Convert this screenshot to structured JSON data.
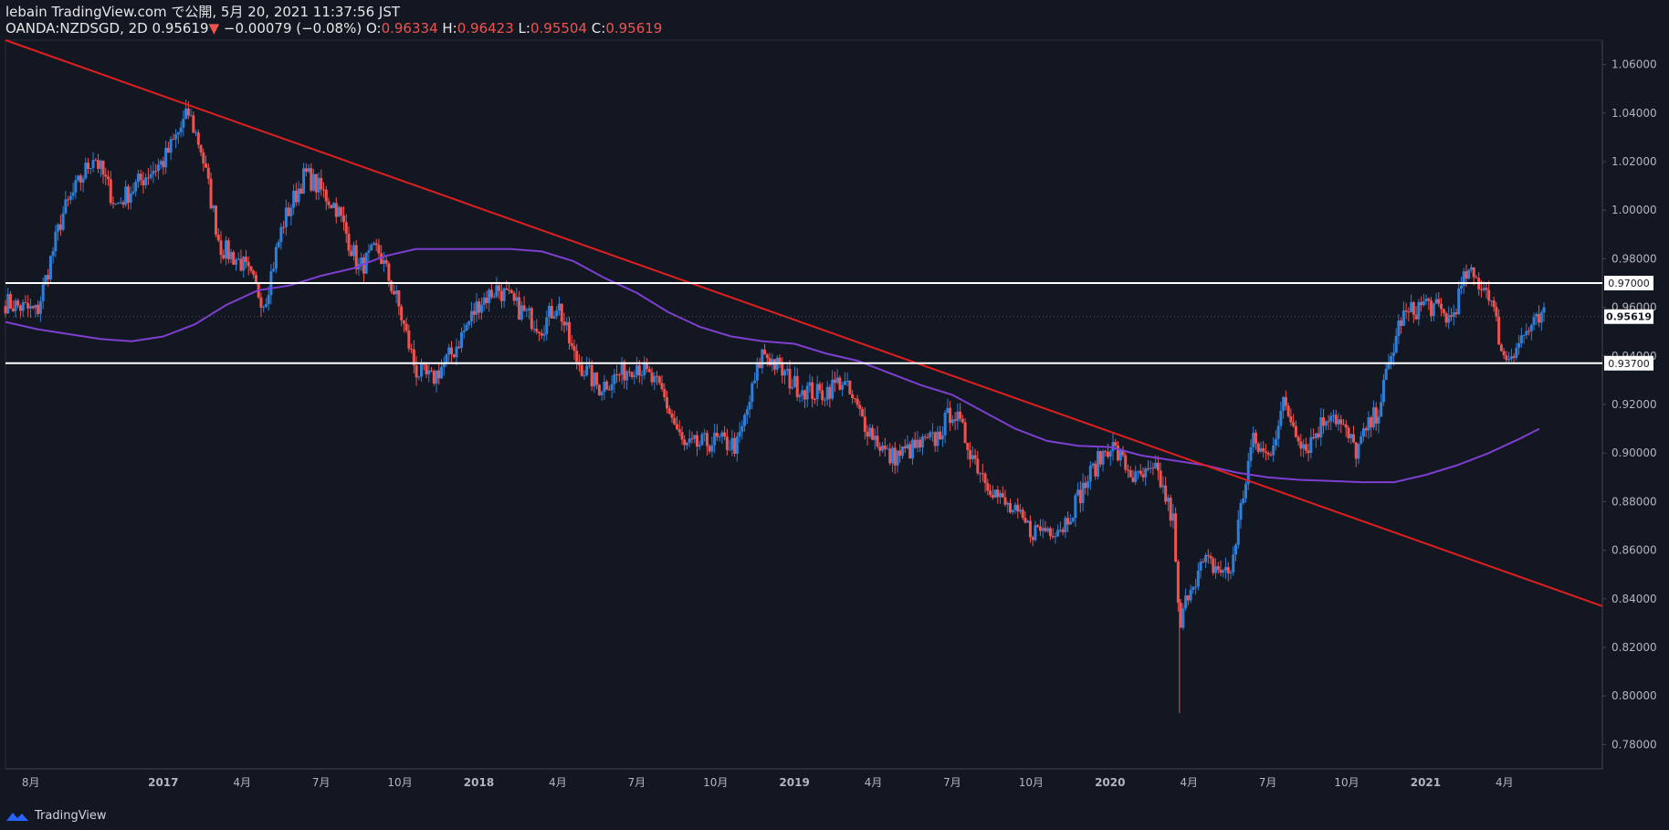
{
  "header": {
    "line1": "lebain TradingView.com で公開, 5月 20, 2021 11:37:56 JST",
    "symbol": "OANDA:NZDSGD, 2D",
    "last": "0.95619",
    "change_arrow": "▼",
    "change": "−0.00079 (−0.08%)",
    "o_label": "O:",
    "o_val": "0.96334",
    "h_label": "H:",
    "h_val": "0.96423",
    "l_label": "L:",
    "l_val": "0.95504",
    "c_label": "C:",
    "c_val": "0.95619"
  },
  "footer": {
    "brand": "TradingView",
    "logo_icon": "tradingview-logo-icon"
  },
  "colors": {
    "background": "#131722",
    "up": "#2f7fd8",
    "down": "#ef5350",
    "trendline": "#e01f1f",
    "ma": "#7e3fd0",
    "level": "#ffffff",
    "axis_text": "#b2b5be"
  },
  "chart_data": {
    "type": "candlestick",
    "ylim": [
      0.77,
      1.07
    ],
    "y_ticks": [
      "1.06000",
      "1.04000",
      "1.02000",
      "1.00000",
      "0.98000",
      "0.96000",
      "0.94000",
      "0.92000",
      "0.90000",
      "0.88000",
      "0.86000",
      "0.84000",
      "0.82000",
      "0.80000",
      "0.78000"
    ],
    "x_labels": [
      "8月",
      "2017",
      "4月",
      "7月",
      "10月",
      "2018",
      "4月",
      "7月",
      "10月",
      "2019",
      "4月",
      "7月",
      "10月",
      "2020",
      "4月",
      "7月",
      "10月",
      "2021",
      "4月"
    ],
    "x_label_times": [
      2016.58,
      2017.0,
      2017.25,
      2017.5,
      2017.75,
      2018.0,
      2018.25,
      2018.5,
      2018.75,
      2019.0,
      2019.25,
      2019.5,
      2019.75,
      2020.0,
      2020.25,
      2020.5,
      2020.75,
      2021.0,
      2021.25
    ],
    "price_series": {
      "t": [
        2016.5,
        2016.6,
        2016.68,
        2016.78,
        2016.85,
        2016.95,
        2017.0,
        2017.08,
        2017.12,
        2017.18,
        2017.25,
        2017.32,
        2017.38,
        2017.45,
        2017.55,
        2017.62,
        2017.68,
        2017.74,
        2017.8,
        2017.85,
        2017.92,
        2018.0,
        2018.06,
        2018.12,
        2018.2,
        2018.25,
        2018.3,
        2018.38,
        2018.5,
        2018.58,
        2018.65,
        2018.75,
        2018.82,
        2018.9,
        2019.0,
        2019.08,
        2019.15,
        2019.22,
        2019.3,
        2019.38,
        2019.45,
        2019.5,
        2019.58,
        2019.65,
        2019.75,
        2019.85,
        2019.95,
        2020.0,
        2020.08,
        2020.15,
        2020.2,
        2020.22,
        2020.25,
        2020.3,
        2020.38,
        2020.45,
        2020.5,
        2020.55,
        2020.62,
        2020.7,
        2020.78,
        2020.85,
        2020.92,
        2021.0,
        2021.08,
        2021.13,
        2021.2,
        2021.25,
        2021.32,
        2021.38
      ],
      "close": [
        0.962,
        0.958,
        0.998,
        1.023,
        1.002,
        1.015,
        1.02,
        1.04,
        1.025,
        0.985,
        0.978,
        0.962,
        0.995,
        1.015,
        1.001,
        0.976,
        0.984,
        0.963,
        0.934,
        0.93,
        0.942,
        0.962,
        0.968,
        0.96,
        0.952,
        0.962,
        0.94,
        0.927,
        0.937,
        0.925,
        0.902,
        0.905,
        0.903,
        0.942,
        0.928,
        0.924,
        0.93,
        0.913,
        0.898,
        0.902,
        0.906,
        0.918,
        0.895,
        0.881,
        0.868,
        0.87,
        0.894,
        0.904,
        0.889,
        0.892,
        0.872,
        0.826,
        0.845,
        0.855,
        0.85,
        0.905,
        0.898,
        0.92,
        0.902,
        0.918,
        0.901,
        0.918,
        0.955,
        0.962,
        0.955,
        0.974,
        0.967,
        0.938,
        0.95,
        0.9562
      ]
    },
    "moving_average": {
      "t": [
        2016.5,
        2016.6,
        2016.7,
        2016.8,
        2016.9,
        2017.0,
        2017.1,
        2017.2,
        2017.3,
        2017.4,
        2017.5,
        2017.6,
        2017.7,
        2017.8,
        2017.9,
        2018.0,
        2018.1,
        2018.2,
        2018.3,
        2018.4,
        2018.5,
        2018.6,
        2018.7,
        2018.8,
        2018.9,
        2019.0,
        2019.1,
        2019.2,
        2019.3,
        2019.4,
        2019.5,
        2019.6,
        2019.7,
        2019.8,
        2019.9,
        2020.0,
        2020.1,
        2020.2,
        2020.3,
        2020.4,
        2020.5,
        2020.6,
        2020.7,
        2020.8,
        2020.9,
        2021.0,
        2021.1,
        2021.2,
        2021.3,
        2021.36
      ],
      "value": [
        0.954,
        0.951,
        0.949,
        0.947,
        0.946,
        0.948,
        0.953,
        0.961,
        0.967,
        0.969,
        0.973,
        0.976,
        0.981,
        0.984,
        0.984,
        0.984,
        0.984,
        0.983,
        0.979,
        0.972,
        0.966,
        0.958,
        0.952,
        0.948,
        0.946,
        0.945,
        0.941,
        0.938,
        0.933,
        0.928,
        0.924,
        0.917,
        0.91,
        0.905,
        0.903,
        0.9025,
        0.899,
        0.897,
        0.895,
        0.892,
        0.89,
        0.889,
        0.8885,
        0.888,
        0.888,
        0.891,
        0.895,
        0.9,
        0.906,
        0.91
      ]
    },
    "trendline": {
      "t": [
        2016.5,
        2021.56
      ],
      "value": [
        1.07,
        0.837
      ]
    },
    "levels": [
      {
        "label": "0.97000",
        "value": 0.97
      },
      {
        "label": "0.93700",
        "value": 0.937
      }
    ],
    "last_price_label": "0.95619",
    "last_price": 0.95619
  }
}
